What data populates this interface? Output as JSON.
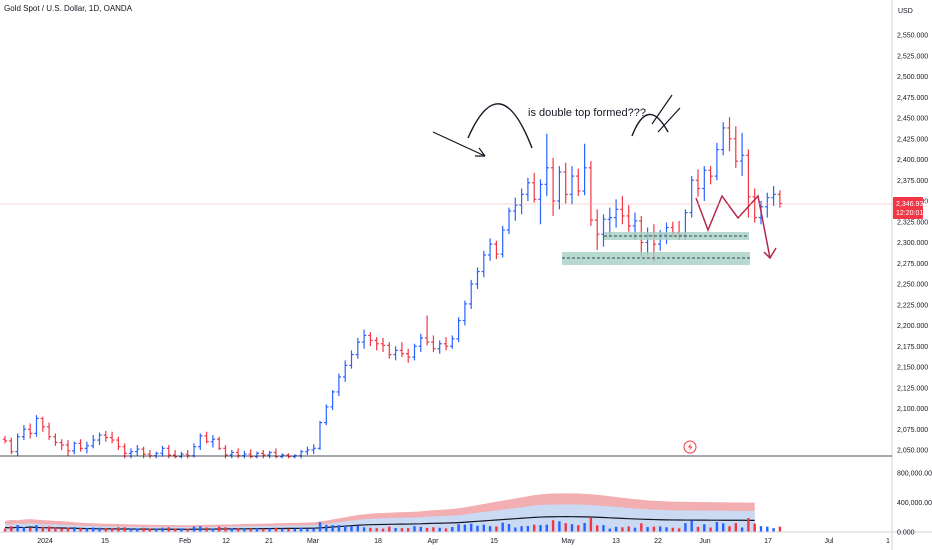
{
  "header": {
    "symbol_title": "Gold Spot / U.S. Dollar, 1D, OANDA"
  },
  "price_axis": {
    "currency": "USD",
    "ticks": [
      "2,550.000",
      "2,525.000",
      "2,500.000",
      "2,475.000",
      "2,450.000",
      "2,425.000",
      "2,400.000",
      "2,375.000",
      "2,350.000",
      "2,325.000",
      "2,300.000",
      "2,275.000",
      "2,250.000",
      "2,225.000",
      "2,200.000",
      "2,175.000",
      "2,150.000",
      "2,125.000",
      "2,100.000",
      "2,075.000",
      "2,050.000"
    ],
    "last_price": "2,346.930",
    "countdown": "12:20:01"
  },
  "volume_axis": {
    "ticks": [
      "800,000.000",
      "400,000.000",
      "0.000"
    ]
  },
  "time_axis": {
    "ticks": [
      "2024",
      "15",
      "Feb",
      "12",
      "21",
      "Mar",
      "18",
      "Apr",
      "15",
      "May",
      "13",
      "22",
      "Jun",
      "17",
      "Jul",
      "1"
    ]
  },
  "annotation": {
    "text": "is double top formed???"
  },
  "colors": {
    "up": "#2962ff",
    "down": "#f23645",
    "arrow": "#b22a4b",
    "zone": "#a5cfc3"
  },
  "chart_data": {
    "type": "ohlc",
    "title": "Gold Spot / U.S. Dollar, 1D, OANDA",
    "ylim": [
      2040,
      2570
    ],
    "vol_ylim": [
      0,
      950000
    ],
    "bars": [
      [
        2063,
        2067,
        2058,
        2061
      ],
      [
        2061,
        2065,
        2045,
        2048
      ],
      [
        2048,
        2070,
        2043,
        2066
      ],
      [
        2066,
        2080,
        2062,
        2075
      ],
      [
        2075,
        2082,
        2064,
        2070
      ],
      [
        2070,
        2092,
        2066,
        2088
      ],
      [
        2088,
        2090,
        2072,
        2078
      ],
      [
        2078,
        2083,
        2062,
        2066
      ],
      [
        2066,
        2070,
        2055,
        2059
      ],
      [
        2059,
        2063,
        2050,
        2056
      ],
      [
        2056,
        2062,
        2043,
        2049
      ],
      [
        2049,
        2060,
        2045,
        2058
      ],
      [
        2058,
        2063,
        2048,
        2052
      ],
      [
        2052,
        2060,
        2046,
        2055
      ],
      [
        2055,
        2068,
        2052,
        2062
      ],
      [
        2062,
        2071,
        2056,
        2068
      ],
      [
        2068,
        2073,
        2060,
        2065
      ],
      [
        2065,
        2072,
        2058,
        2062
      ],
      [
        2062,
        2066,
        2050,
        2054
      ],
      [
        2054,
        2058,
        2040,
        2046
      ],
      [
        2046,
        2052,
        2040,
        2048
      ],
      [
        2048,
        2056,
        2043,
        2051
      ],
      [
        2051,
        2054,
        2040,
        2045
      ],
      [
        2045,
        2050,
        2040,
        2043
      ],
      [
        2043,
        2048,
        2040,
        2046
      ],
      [
        2046,
        2055,
        2042,
        2052
      ],
      [
        2052,
        2056,
        2040,
        2044
      ],
      [
        2044,
        2050,
        2040,
        2042
      ],
      [
        2042,
        2048,
        2040,
        2045
      ],
      [
        2045,
        2050,
        2040,
        2043
      ],
      [
        2043,
        2058,
        2041,
        2054
      ],
      [
        2054,
        2070,
        2050,
        2067
      ],
      [
        2067,
        2072,
        2058,
        2060
      ],
      [
        2060,
        2068,
        2053,
        2063
      ],
      [
        2063,
        2066,
        2050,
        2052
      ],
      [
        2052,
        2056,
        2040,
        2044
      ],
      [
        2044,
        2050,
        2040,
        2047
      ],
      [
        2047,
        2052,
        2040,
        2043
      ],
      [
        2043,
        2049,
        2040,
        2045
      ],
      [
        2045,
        2051,
        2040,
        2042
      ],
      [
        2042,
        2048,
        2040,
        2046
      ],
      [
        2046,
        2050,
        2040,
        2044
      ],
      [
        2044,
        2049,
        2040,
        2047
      ],
      [
        2047,
        2052,
        2040,
        2042
      ],
      [
        2042,
        2046,
        2040,
        2044
      ],
      [
        2044,
        2046,
        2040,
        2042
      ],
      [
        2042,
        2045,
        2040,
        2043
      ],
      [
        2043,
        2050,
        2040,
        2048
      ],
      [
        2048,
        2054,
        2044,
        2050
      ],
      [
        2050,
        2057,
        2045,
        2052
      ],
      [
        2052,
        2085,
        2050,
        2083
      ],
      [
        2083,
        2105,
        2080,
        2102
      ],
      [
        2102,
        2122,
        2098,
        2120
      ],
      [
        2120,
        2142,
        2115,
        2138
      ],
      [
        2138,
        2158,
        2132,
        2152
      ],
      [
        2152,
        2170,
        2148,
        2165
      ],
      [
        2165,
        2185,
        2160,
        2180
      ],
      [
        2180,
        2195,
        2172,
        2188
      ],
      [
        2188,
        2192,
        2175,
        2182
      ],
      [
        2182,
        2186,
        2170,
        2178
      ],
      [
        2178,
        2185,
        2168,
        2176
      ],
      [
        2176,
        2180,
        2160,
        2165
      ],
      [
        2165,
        2175,
        2158,
        2170
      ],
      [
        2170,
        2180,
        2162,
        2166
      ],
      [
        2166,
        2172,
        2155,
        2162
      ],
      [
        2162,
        2178,
        2158,
        2175
      ],
      [
        2175,
        2190,
        2168,
        2185
      ],
      [
        2185,
        2212,
        2176,
        2180
      ],
      [
        2180,
        2188,
        2168,
        2172
      ],
      [
        2172,
        2182,
        2166,
        2178
      ],
      [
        2178,
        2186,
        2170,
        2175
      ],
      [
        2175,
        2188,
        2172,
        2184
      ],
      [
        2184,
        2210,
        2180,
        2206
      ],
      [
        2206,
        2230,
        2200,
        2226
      ],
      [
        2226,
        2255,
        2220,
        2250
      ],
      [
        2250,
        2270,
        2244,
        2265
      ],
      [
        2265,
        2290,
        2258,
        2285
      ],
      [
        2285,
        2305,
        2278,
        2298
      ],
      [
        2298,
        2302,
        2280,
        2286
      ],
      [
        2286,
        2320,
        2282,
        2315
      ],
      [
        2315,
        2342,
        2310,
        2338
      ],
      [
        2338,
        2354,
        2326,
        2345
      ],
      [
        2345,
        2365,
        2334,
        2358
      ],
      [
        2358,
        2378,
        2350,
        2372
      ],
      [
        2372,
        2384,
        2348,
        2352
      ],
      [
        2352,
        2376,
        2322,
        2370
      ],
      [
        2370,
        2431,
        2356,
        2390
      ],
      [
        2390,
        2402,
        2332,
        2350
      ],
      [
        2350,
        2392,
        2340,
        2385
      ],
      [
        2385,
        2396,
        2347,
        2358
      ],
      [
        2358,
        2392,
        2346,
        2380
      ],
      [
        2380,
        2389,
        2356,
        2362
      ],
      [
        2362,
        2419,
        2357,
        2390
      ],
      [
        2390,
        2398,
        2320,
        2327
      ],
      [
        2327,
        2340,
        2291,
        2310
      ],
      [
        2310,
        2334,
        2295,
        2328
      ],
      [
        2328,
        2342,
        2308,
        2330
      ],
      [
        2330,
        2352,
        2318,
        2340
      ],
      [
        2340,
        2356,
        2322,
        2332
      ],
      [
        2332,
        2345,
        2313,
        2320
      ],
      [
        2320,
        2336,
        2303,
        2326
      ],
      [
        2326,
        2332,
        2283,
        2300
      ],
      [
        2300,
        2318,
        2285,
        2309
      ],
      [
        2309,
        2322,
        2277,
        2298
      ],
      [
        2298,
        2315,
        2290,
        2310
      ],
      [
        2310,
        2324,
        2298,
        2318
      ],
      [
        2318,
        2325,
        2306,
        2312
      ],
      [
        2312,
        2326,
        2303,
        2309
      ],
      [
        2309,
        2340,
        2303,
        2336
      ],
      [
        2336,
        2380,
        2330,
        2375
      ],
      [
        2375,
        2388,
        2355,
        2365
      ],
      [
        2365,
        2392,
        2350,
        2387
      ],
      [
        2387,
        2392,
        2370,
        2380
      ],
      [
        2380,
        2420,
        2375,
        2412
      ],
      [
        2412,
        2445,
        2405,
        2438
      ],
      [
        2438,
        2451,
        2410,
        2425
      ],
      [
        2425,
        2440,
        2390,
        2398
      ],
      [
        2398,
        2432,
        2380,
        2405
      ],
      [
        2405,
        2412,
        2330,
        2355
      ],
      [
        2355,
        2365,
        2324,
        2330
      ],
      [
        2330,
        2350,
        2322,
        2343
      ],
      [
        2343,
        2360,
        2330,
        2354
      ],
      [
        2354,
        2368,
        2344,
        2358
      ],
      [
        2358,
        2363,
        2342,
        2347
      ]
    ],
    "volume": [
      [
        150000,
        80000
      ],
      [
        165000,
        75000
      ],
      [
        160000,
        85000
      ],
      [
        170000,
        80000
      ],
      [
        175000,
        90000
      ],
      [
        168000,
        82000
      ],
      [
        162000,
        78000
      ],
      [
        158000,
        76000
      ],
      [
        150000,
        75000
      ],
      [
        148000,
        72000
      ],
      [
        140000,
        70000
      ],
      [
        132000,
        68000
      ],
      [
        125000,
        64000
      ],
      [
        120000,
        62000
      ],
      [
        118000,
        60000
      ],
      [
        115000,
        58000
      ],
      [
        112000,
        57000
      ],
      [
        110000,
        56000
      ],
      [
        108000,
        55000
      ],
      [
        106000,
        54000
      ],
      [
        104000,
        54000
      ],
      [
        102000,
        53000
      ],
      [
        100000,
        52000
      ],
      [
        98000,
        52000
      ],
      [
        96000,
        51000
      ],
      [
        95000,
        51000
      ],
      [
        94000,
        50000
      ],
      [
        93000,
        50000
      ],
      [
        92000,
        50000
      ],
      [
        92000,
        49000
      ],
      [
        93000,
        50000
      ],
      [
        95000,
        51000
      ],
      [
        96000,
        52000
      ],
      [
        98000,
        53000
      ],
      [
        100000,
        54000
      ],
      [
        102000,
        55000
      ],
      [
        104000,
        56000
      ],
      [
        106000,
        57000
      ],
      [
        108000,
        58000
      ],
      [
        110000,
        59000
      ],
      [
        112000,
        60000
      ],
      [
        114000,
        61000
      ],
      [
        116000,
        62000
      ],
      [
        118000,
        63000
      ],
      [
        120000,
        64000
      ],
      [
        122000,
        65000
      ],
      [
        124000,
        66000
      ],
      [
        126000,
        67000
      ],
      [
        128000,
        68000
      ],
      [
        130000,
        69000
      ],
      [
        140000,
        74000
      ],
      [
        155000,
        82000
      ],
      [
        170000,
        90000
      ],
      [
        185000,
        98000
      ],
      [
        200000,
        106000
      ],
      [
        215000,
        114000
      ],
      [
        230000,
        122000
      ],
      [
        240000,
        128000
      ],
      [
        248000,
        132000
      ],
      [
        254000,
        135000
      ],
      [
        258000,
        137000
      ],
      [
        262000,
        139000
      ],
      [
        266000,
        141000
      ],
      [
        270000,
        143000
      ],
      [
        272000,
        144000
      ],
      [
        275000,
        146000
      ],
      [
        280000,
        148000
      ],
      [
        290000,
        154000
      ],
      [
        296000,
        157000
      ],
      [
        300000,
        159000
      ],
      [
        305000,
        162000
      ],
      [
        312000,
        165000
      ],
      [
        322000,
        170000
      ],
      [
        335000,
        177000
      ],
      [
        350000,
        185000
      ],
      [
        365000,
        193000
      ],
      [
        380000,
        201000
      ],
      [
        395000,
        209000
      ],
      [
        410000,
        217000
      ],
      [
        425000,
        225000
      ],
      [
        440000,
        233000
      ],
      [
        455000,
        241000
      ],
      [
        470000,
        249000
      ],
      [
        485000,
        257000
      ],
      [
        500000,
        265000
      ],
      [
        510000,
        270000
      ],
      [
        518000,
        274000
      ],
      [
        522000,
        276000
      ],
      [
        524000,
        277000
      ],
      [
        525000,
        278000
      ],
      [
        524000,
        277000
      ],
      [
        522000,
        276000
      ],
      [
        518000,
        274000
      ],
      [
        512000,
        271000
      ],
      [
        505000,
        267000
      ],
      [
        495000,
        262000
      ],
      [
        485000,
        257000
      ],
      [
        475000,
        251000
      ],
      [
        465000,
        246000
      ],
      [
        455000,
        241000
      ],
      [
        445000,
        236000
      ],
      [
        437000,
        232000
      ],
      [
        430000,
        228000
      ],
      [
        424000,
        225000
      ],
      [
        419000,
        222000
      ],
      [
        415000,
        220000
      ],
      [
        412000,
        218000
      ],
      [
        410000,
        217000
      ],
      [
        409000,
        216000
      ],
      [
        408000,
        216000
      ],
      [
        407000,
        215000
      ],
      [
        406000,
        215000
      ],
      [
        405000,
        214000
      ],
      [
        404000,
        214000
      ],
      [
        403000,
        213000
      ],
      [
        402000,
        213000
      ],
      [
        401000,
        212000
      ],
      [
        400000,
        212000
      ],
      [
        399000,
        211000
      ],
      [
        398000,
        211000
      ]
    ]
  }
}
